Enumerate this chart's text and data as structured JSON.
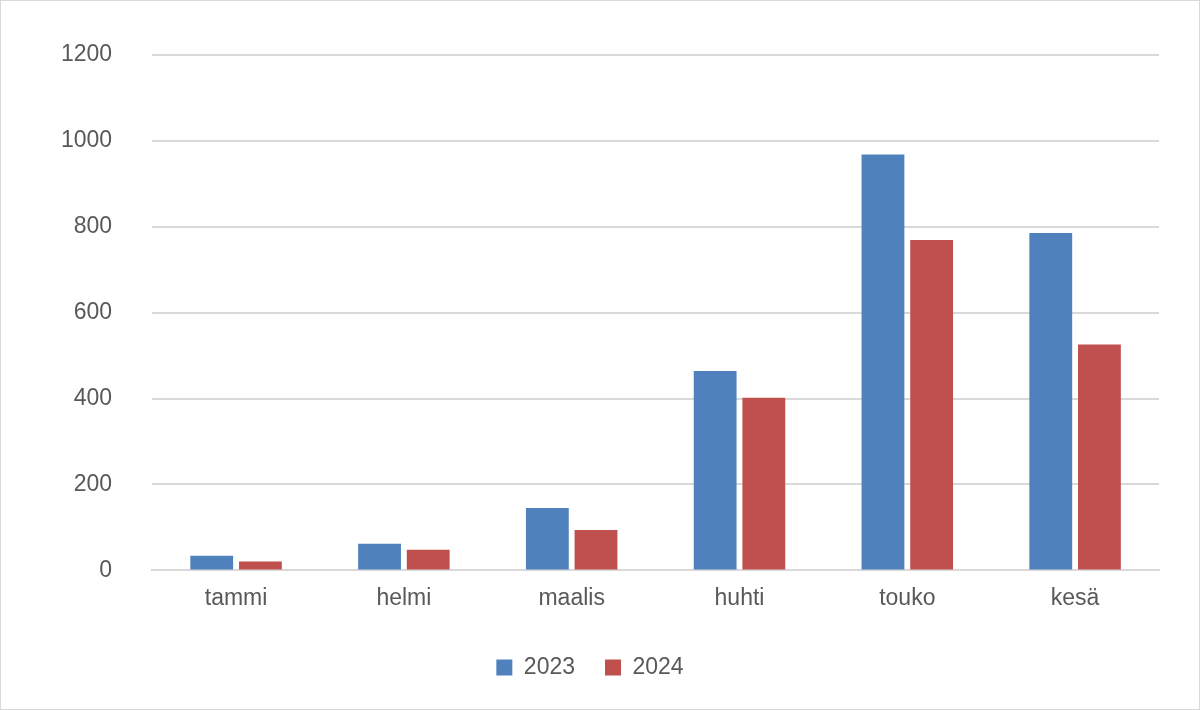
{
  "chart_data": {
    "type": "bar",
    "categories": [
      "tammi",
      "helmi",
      "maalis",
      "huhti",
      "touko",
      "kesä"
    ],
    "series": [
      {
        "name": "2023",
        "color": "#4f81bd",
        "values": [
          34,
          62,
          145,
          464,
          968,
          785
        ]
      },
      {
        "name": "2024",
        "color": "#c0504d",
        "values": [
          21,
          48,
          94,
          402,
          769,
          526
        ]
      }
    ],
    "ylim": [
      0,
      1200
    ],
    "yticks": [
      0,
      200,
      400,
      600,
      800,
      1000,
      1200
    ],
    "grid": "y",
    "legend": "bottom"
  }
}
